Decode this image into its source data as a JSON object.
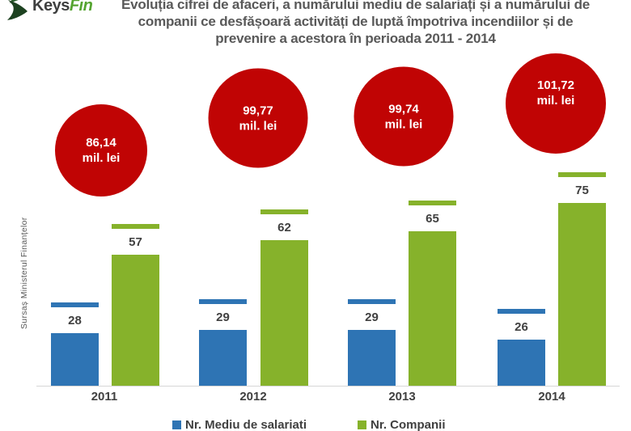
{
  "logo": {
    "keys": "Keys",
    "fin": "Fin"
  },
  "title": {
    "lines": [
      "Evoluția cifrei de afaceri, a numărului mediu de salariați și a numărului de",
      "companii ce desfășoară activități de luptă împotriva incendiilor și de",
      "prevenire a acestora în perioada 2011 - 2014"
    ]
  },
  "source": "Sursaș Ministerul Finanțelor",
  "colors": {
    "bubble_red": "#c00404",
    "bar_blue": "#2e74b4",
    "bar_green": "#86b22b",
    "title_gray": "#595959",
    "label_gray": "#404040"
  },
  "chart_data": {
    "type": "bar",
    "subtype": "grouped-bars-with-bubble-overlay",
    "title": "Evoluția cifrei de afaceri, a numărului mediu de salariați și a numărului de companii ce desfășoară activități de luptă împotriva incendiilor și de prevenire a acestora în perioada 2011 - 2014",
    "categories": [
      "2011",
      "2012",
      "2013",
      "2014"
    ],
    "series": [
      {
        "name": "Nr. Mediu de salariati",
        "color": "#2e74b4",
        "values": [
          28,
          29,
          29,
          26
        ]
      },
      {
        "name": "Nr. Companii",
        "color": "#86b22b",
        "values": [
          57,
          62,
          65,
          75
        ]
      }
    ],
    "bubbles": {
      "values": [
        86.14,
        99.77,
        99.74,
        101.72
      ],
      "labels": [
        "86,14",
        "99,77",
        "99,74",
        "101,72"
      ],
      "unit": "mil. lei",
      "color": "#c00404"
    },
    "legend_position": "bottom",
    "grid": false,
    "value_labels": true
  }
}
